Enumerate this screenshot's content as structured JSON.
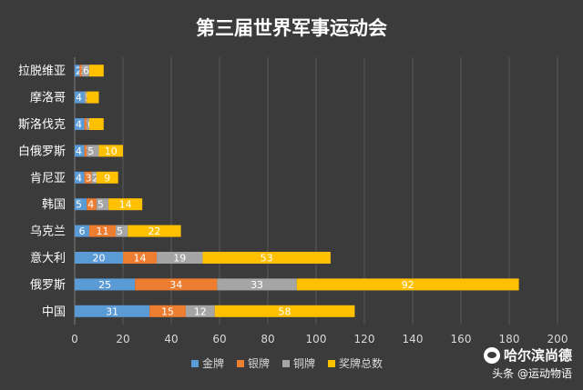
{
  "chart_data": {
    "type": "bar",
    "orientation": "horizontal",
    "stacked": true,
    "title": "第三届世界军事运动会",
    "categories": [
      "拉脱维亚",
      "摩洛哥",
      "斯洛伐克",
      "白俄罗斯",
      "肯尼亚",
      "韩国",
      "乌克兰",
      "意大利",
      "俄罗斯",
      "中国"
    ],
    "series": [
      {
        "name": "金牌",
        "color": "#5b9bd5",
        "values": [
          2,
          4,
          4,
          4,
          4,
          5,
          6,
          20,
          25,
          31
        ]
      },
      {
        "name": "银牌",
        "color": "#ed7d31",
        "values": [
          1,
          0,
          1,
          1,
          3,
          4,
          11,
          14,
          34,
          15
        ]
      },
      {
        "name": "铜牌",
        "color": "#a5a5a5",
        "values": [
          3,
          1,
          1,
          5,
          2,
          5,
          5,
          19,
          33,
          12
        ]
      },
      {
        "name": "奖牌总数",
        "color": "#ffc000",
        "values": [
          6,
          5,
          6,
          10,
          9,
          14,
          22,
          53,
          92,
          58
        ]
      }
    ],
    "data_labels": [
      [
        "2",
        "3",
        "6"
      ],
      [
        "4",
        "5"
      ],
      [
        "4",
        "1",
        "6"
      ],
      [
        "4",
        "1",
        "5",
        "10"
      ],
      [
        "4",
        "3",
        "2",
        "9"
      ],
      [
        "5",
        "4",
        "5",
        "14"
      ],
      [
        "6",
        "11",
        "5",
        "22"
      ],
      [
        "20",
        "14",
        "19",
        "53"
      ],
      [
        "25",
        "34",
        "33",
        "92"
      ],
      [
        "31",
        "15",
        "12",
        "58"
      ]
    ],
    "xlim": [
      0,
      200
    ],
    "xticks": [
      0,
      20,
      40,
      60,
      80,
      100,
      120,
      140,
      160,
      180,
      200
    ],
    "grid": true,
    "legend_position": "bottom"
  },
  "watermark": {
    "main": "哈尔滨尚德",
    "sub": "头条 @运动物语"
  }
}
